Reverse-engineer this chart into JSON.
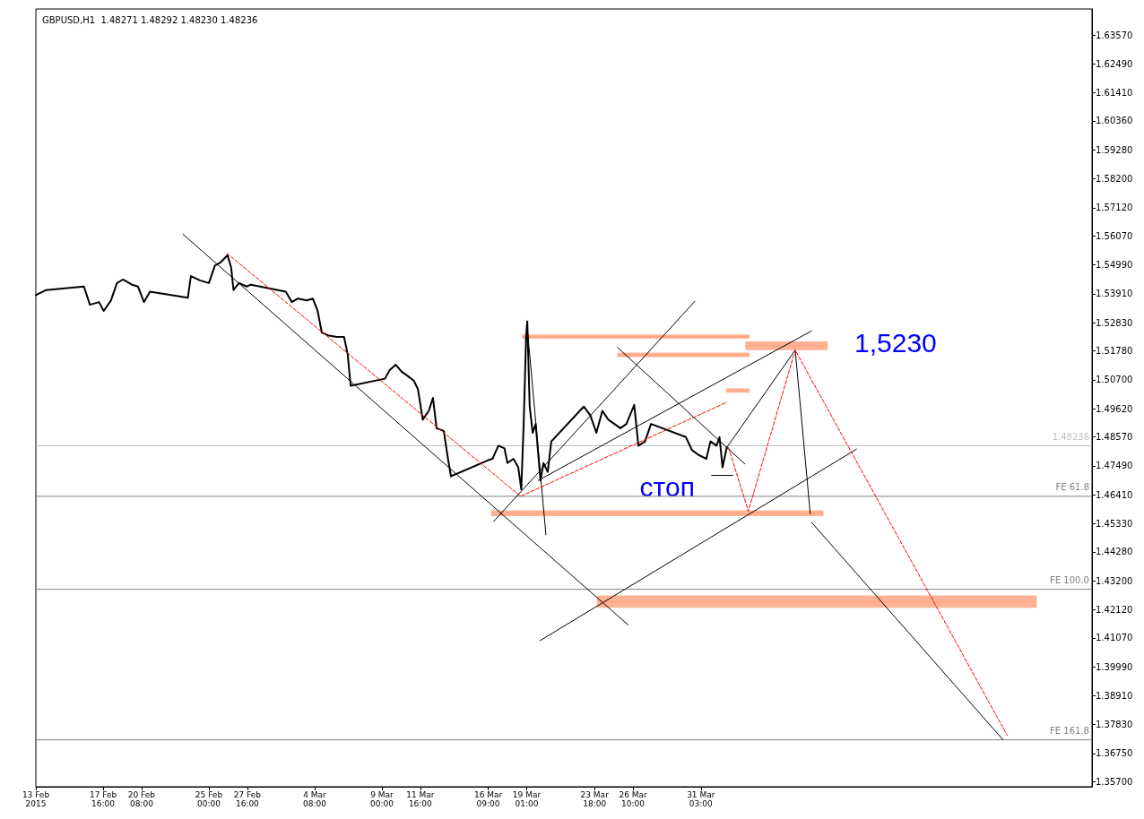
{
  "chart_data": {
    "type": "line",
    "title": "GBPUSD,H1  1.48271 1.48292 1.48230 1.48236",
    "xlim": [
      "2015-02-13T00:00",
      "2015-04-27T06:00"
    ],
    "xticks": [
      {
        "value": "2015-02-13T00:00",
        "label": "13 Feb 2015"
      },
      {
        "value": "2015-02-17T16:00",
        "label": "17 Feb 16:00"
      },
      {
        "value": "2015-02-20T08:00",
        "label": "20 Feb 08:00"
      },
      {
        "value": "2015-02-25T00:00",
        "label": "25 Feb 00:00"
      },
      {
        "value": "2015-02-27T16:00",
        "label": "27 Feb 16:00"
      },
      {
        "value": "2015-03-04T08:00",
        "label": "4 Mar 08:00"
      },
      {
        "value": "2015-03-09T00:00",
        "label": "9 Mar 00:00"
      },
      {
        "value": "2015-03-11T16:00",
        "label": "11 Mar 16:00"
      },
      {
        "value": "2015-03-16T09:00",
        "label": "16 Mar 09:00"
      },
      {
        "value": "2015-03-19T01:00",
        "label": "19 Mar 01:00"
      },
      {
        "value": "2015-03-23T18:00",
        "label": "23 Mar 18:00"
      },
      {
        "value": "2015-03-26T10:00",
        "label": "26 Mar 10:00"
      },
      {
        "value": "2015-03-31T03:00",
        "label": "31 Mar 03:00"
      }
    ],
    "ylim": [
      1.3551,
      1.6454
    ],
    "yticks": [
      {
        "value": 1.357,
        "label": "1.35700"
      },
      {
        "value": 1.3675,
        "label": "1.36750"
      },
      {
        "value": 1.3783,
        "label": "1.37830"
      },
      {
        "value": 1.3891,
        "label": "1.38910"
      },
      {
        "value": 1.3999,
        "label": "1.39990"
      },
      {
        "value": 1.4107,
        "label": "1.41070"
      },
      {
        "value": 1.4212,
        "label": "1.42120"
      },
      {
        "value": 1.432,
        "label": "1.43200"
      },
      {
        "value": 1.4428,
        "label": "1.44280"
      },
      {
        "value": 1.4533,
        "label": "1.45330"
      },
      {
        "value": 1.4641,
        "label": "1.46410"
      },
      {
        "value": 1.4749,
        "label": "1.47490"
      },
      {
        "value": 1.4857,
        "label": "1.48570"
      },
      {
        "value": 1.4962,
        "label": "1.49620"
      },
      {
        "value": 1.507,
        "label": "1.50700"
      },
      {
        "value": 1.5178,
        "label": "1.51780"
      },
      {
        "value": 1.5283,
        "label": "1.52830"
      },
      {
        "value": 1.5391,
        "label": "1.53910"
      },
      {
        "value": 1.5499,
        "label": "1.54990"
      },
      {
        "value": 1.5607,
        "label": "1.56070"
      },
      {
        "value": 1.5712,
        "label": "1.57120"
      },
      {
        "value": 1.582,
        "label": "1.58200"
      },
      {
        "value": 1.5928,
        "label": "1.59280"
      },
      {
        "value": 1.6036,
        "label": "1.60360"
      },
      {
        "value": 1.6141,
        "label": "1.61410"
      },
      {
        "value": 1.6249,
        "label": "1.62490"
      },
      {
        "value": 1.6357,
        "label": "1.63570"
      }
    ],
    "series": [
      {
        "color": "#000000",
        "x": [
          "2015-02-13T00:00",
          "2015-02-13T17:00",
          "2015-02-16T08:00",
          "2015-02-16T18:00",
          "2015-02-17T09:00",
          "2015-02-17T17:00",
          "2015-02-18T05:00",
          "2015-02-18T15:00",
          "2015-02-19T01:00",
          "2015-02-19T16:00",
          "2015-02-20T02:00",
          "2015-02-20T12:00",
          "2015-02-20T22:00",
          "2015-02-23T13:00",
          "2015-02-23T18:00",
          "2015-02-24T09:00",
          "2015-02-25T00:00",
          "2015-02-25T10:00",
          "2015-02-25T20:00",
          "2015-02-26T07:00",
          "2015-02-26T13:00",
          "2015-02-26T17:00",
          "2015-02-27T02:00",
          "2015-02-27T15:00",
          "2015-02-27T22:00",
          "2015-03-02T08:00",
          "2015-03-02T18:00",
          "2015-03-03T04:00",
          "2015-03-03T19:00",
          "2015-03-04T05:00",
          "2015-03-04T13:00",
          "2015-03-04T20:00",
          "2015-03-05T06:00",
          "2015-03-05T21:00",
          "2015-03-06T09:00",
          "2015-03-06T15:00",
          "2015-03-06T20:00",
          "2015-03-09T05:00",
          "2015-03-09T13:00",
          "2015-03-09T23:00",
          "2015-03-10T09:00",
          "2015-03-10T19:00",
          "2015-03-11T05:00",
          "2015-03-11T12:00",
          "2015-03-11T20:00",
          "2015-03-12T06:00",
          "2015-03-12T13:00",
          "2015-03-12T19:00",
          "2015-03-13T07:00",
          "2015-03-13T14:00",
          "2015-03-13T19:00",
          "2015-03-16T08:00",
          "2015-03-16T16:00",
          "2015-03-17T02:00",
          "2015-03-17T12:00",
          "2015-03-17T17:00",
          "2015-03-18T03:00",
          "2015-03-18T11:00",
          "2015-03-18T16:00",
          "2015-03-18T20:00",
          "2015-03-19T00:00",
          "2015-03-19T02:00",
          "2015-03-19T06:00",
          "2015-03-19T11:00",
          "2015-03-19T16:00",
          "2015-03-20T00:00",
          "2015-03-20T05:00",
          "2015-03-20T12:00",
          "2015-03-20T18:00",
          "2015-03-23T00:00",
          "2015-03-23T11:00",
          "2015-03-23T21:00",
          "2015-03-24T07:00",
          "2015-03-24T17:00",
          "2015-03-25T03:00",
          "2015-03-25T13:00",
          "2015-03-25T23:00",
          "2015-03-26T12:00",
          "2015-03-26T19:00",
          "2015-03-27T06:00",
          "2015-03-27T16:00",
          "2015-03-30T02:00",
          "2015-03-30T12:00",
          "2015-03-30T22:00",
          "2015-03-31T12:00",
          "2015-03-31T19:00",
          "2015-04-01T05:00",
          "2015-04-01T10:00",
          "2015-04-01T15:00",
          "2015-04-01T22:00"
        ],
        "values": [
          1.5386,
          1.5405,
          1.5418,
          1.535,
          1.536,
          1.5327,
          1.5366,
          1.5431,
          1.5444,
          1.5425,
          1.5418,
          1.536,
          1.5399,
          1.5376,
          1.5457,
          1.5441,
          1.5431,
          1.5496,
          1.5509,
          1.5535,
          1.549,
          1.5405,
          1.5431,
          1.5418,
          1.5425,
          1.5399,
          1.536,
          1.5373,
          1.5366,
          1.5373,
          1.5327,
          1.5246,
          1.5236,
          1.523,
          1.523,
          1.5165,
          1.5048,
          1.5074,
          1.5106,
          1.5126,
          1.51,
          1.5084,
          1.5067,
          1.5035,
          1.4921,
          1.4954,
          1.5002,
          1.4889,
          1.4879,
          1.4775,
          1.471,
          1.4769,
          1.4775,
          1.4824,
          1.4814,
          1.4759,
          1.4775,
          1.4743,
          1.4661,
          1.4905,
          1.523,
          1.5288,
          1.497,
          1.4872,
          1.4905,
          1.4694,
          1.4759,
          1.4726,
          1.484,
          1.497,
          1.4937,
          1.4872,
          1.4954,
          1.4921,
          1.4905,
          1.4889,
          1.4905,
          1.4976,
          1.4824,
          1.484,
          1.4905,
          1.4856,
          1.4808,
          1.4791,
          1.4775,
          1.484,
          1.4824,
          1.4856,
          1.4743,
          1.4817
        ]
      },
      {
        "color": "#ffa07a",
        "x": [
          "2015-03-18T17:00",
          "2015-04-03T12:00"
        ],
        "values": [
          1.5231,
          1.5231
        ],
        "lower": [
          1.5223,
          1.5223
        ],
        "upper": [
          1.5239,
          1.5239
        ]
      },
      {
        "color": "#ffa07a",
        "x": [
          "2015-03-25T08:00",
          "2015-04-03T12:00"
        ],
        "values": [
          1.5163,
          1.5163
        ],
        "lower": [
          1.5155,
          1.5155
        ],
        "upper": [
          1.5171,
          1.5171
        ]
      },
      {
        "color": "#ffa07a",
        "x": [
          "2015-04-03T05:00",
          "2015-04-08T22:00"
        ],
        "values": [
          1.5197,
          1.5197
        ],
        "lower": [
          1.5181,
          1.5181
        ],
        "upper": [
          1.5213,
          1.5213
        ]
      },
      {
        "color": "#ffa07a",
        "x": [
          "2015-04-01T21:00",
          "2015-04-03T12:00"
        ],
        "values": [
          1.503,
          1.503
        ],
        "lower": [
          1.5022,
          1.5022
        ],
        "upper": [
          1.5038,
          1.5038
        ]
      },
      {
        "color": "#ffa07a",
        "x": [
          "2015-03-16T14:00",
          "2015-04-08T15:00"
        ],
        "values": [
          1.4572,
          1.4572
        ],
        "lower": [
          1.4561,
          1.4561
        ],
        "upper": [
          1.4583,
          1.4583
        ]
      },
      {
        "color": "#ffa07a",
        "x": [
          "2015-03-23T22:00",
          "2015-04-23T10:00"
        ],
        "values": [
          1.4242,
          1.4242
        ],
        "lower": [
          1.4219,
          1.4219
        ],
        "upper": [
          1.4265,
          1.4265
        ]
      },
      {
        "color": "#000000",
        "x": [
          "2015-02-23T05:00",
          "2015-03-26T02:00"
        ],
        "values": [
          1.5613,
          1.4155
        ]
      },
      {
        "color": "#000000",
        "x": [
          "2015-03-16T18:00",
          "2015-03-30T17:00"
        ],
        "values": [
          1.4541,
          1.5363
        ]
      },
      {
        "color": "#000000",
        "x": [
          "2015-03-19T23:00",
          "2015-04-10T22:00"
        ],
        "values": [
          1.4096,
          1.4811
        ]
      },
      {
        "color": "#000000",
        "x": [
          "2015-03-19T20:00",
          "2015-04-07T19:00"
        ],
        "values": [
          1.4694,
          1.5252
        ]
      },
      {
        "color": "#000000",
        "x": [
          "2015-03-25T08:00",
          "2015-04-03T04:00"
        ],
        "values": [
          1.5191,
          1.4756
        ]
      },
      {
        "color": "#000000",
        "x": [
          "2015-03-19T01:00",
          "2015-03-20T09:00"
        ],
        "values": [
          1.5288,
          1.4492
        ]
      },
      {
        "color": "#000000",
        "x": [
          "2015-04-01T22:00",
          "2015-04-06T16:00",
          "2015-04-07T17:00"
        ],
        "values": [
          1.4817,
          1.5181,
          1.457
        ]
      },
      {
        "color": "#000000",
        "x": [
          "2015-04-07T19:00",
          "2015-04-21T02:00"
        ],
        "values": [
          1.4538,
          1.3726
        ]
      },
      {
        "color": "#000000",
        "x": [
          "2015-03-31T21:00",
          "2015-04-02T08:00"
        ],
        "values": [
          1.4713,
          1.4713
        ]
      },
      {
        "color": "#ff0000",
        "line_style": "dashed",
        "x": [
          "2015-02-26T06:00",
          "2015-03-18T15:00",
          "2015-04-01T22:00"
        ],
        "values": [
          1.5542,
          1.4635,
          1.4986
        ]
      },
      {
        "color": "#ff0000",
        "line_style": "dashed",
        "x": [
          "2015-04-02T01:00",
          "2015-04-03T10:00",
          "2015-04-06T16:00",
          "2015-04-21T09:00"
        ],
        "values": [
          1.4817,
          1.458,
          1.5181,
          1.3742
        ]
      }
    ],
    "ref_lines": [
      {
        "axis": "y",
        "value": 1.48236,
        "label": "1.48236",
        "color": "#c0c0c0"
      },
      {
        "axis": "y",
        "value": 1.4635,
        "label": "FE 61.8",
        "color": "#808080"
      },
      {
        "axis": "y",
        "value": 1.4288,
        "label": "FE 100.0",
        "color": "#808080"
      },
      {
        "axis": "y",
        "value": 1.3726,
        "label": "FE 161.8",
        "color": "#808080"
      }
    ],
    "annotations": [
      "стоп",
      "1,5230"
    ],
    "line_style": "solid"
  }
}
